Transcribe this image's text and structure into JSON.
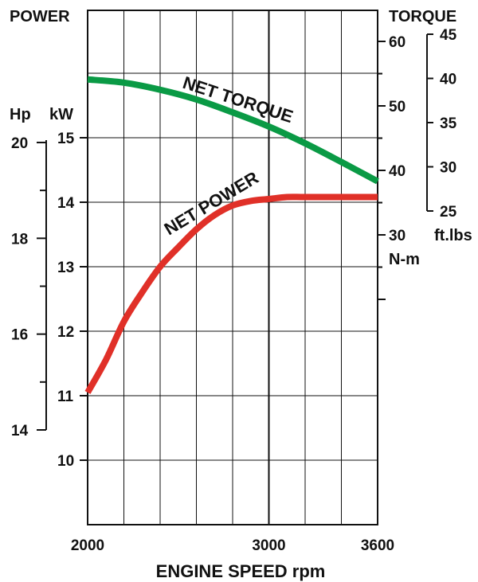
{
  "chart_data": {
    "type": "line",
    "xlabel": "ENGINE SPEED rpm",
    "x_ticks": [
      "2000",
      "3000",
      "3600"
    ],
    "xlim": [
      2000,
      3600
    ],
    "power_title": "POWER",
    "torque_title": "TORQUE",
    "hp_label": "Hp",
    "kw_label": "kW",
    "nm_label": "N-m",
    "ftlbs_label": "ft.lbs",
    "kw_ticks": [
      "10",
      "11",
      "12",
      "13",
      "14",
      "15"
    ],
    "hp_ticks": [
      "14",
      "16",
      "18",
      "20"
    ],
    "nm_ticks": [
      "30",
      "40",
      "50",
      "60"
    ],
    "ftlbs_ticks": [
      "25",
      "30",
      "35",
      "40",
      "45"
    ],
    "kw_range": [
      9,
      15.5
    ],
    "nm_range": [
      20,
      60
    ],
    "series": [
      {
        "name": "NET TORQUE",
        "unit": "N-m",
        "color": "#0a9a45",
        "x": [
          2000,
          2200,
          2400,
          2600,
          2800,
          3000,
          3200,
          3400,
          3600
        ],
        "values": [
          54.1,
          53.6,
          52.5,
          51.0,
          49.0,
          46.8,
          44.2,
          41.3,
          38.3
        ]
      },
      {
        "name": "NET POWER",
        "unit": "kW",
        "color": "#e03028",
        "x": [
          2000,
          2100,
          2200,
          2300,
          2400,
          2500,
          2600,
          2700,
          2800,
          2900,
          3000,
          3100,
          3200,
          3400,
          3600
        ],
        "values": [
          11.05,
          11.55,
          12.15,
          12.6,
          13.0,
          13.3,
          13.58,
          13.8,
          13.95,
          14.02,
          14.05,
          14.08,
          14.08,
          14.08,
          14.08
        ]
      }
    ]
  }
}
